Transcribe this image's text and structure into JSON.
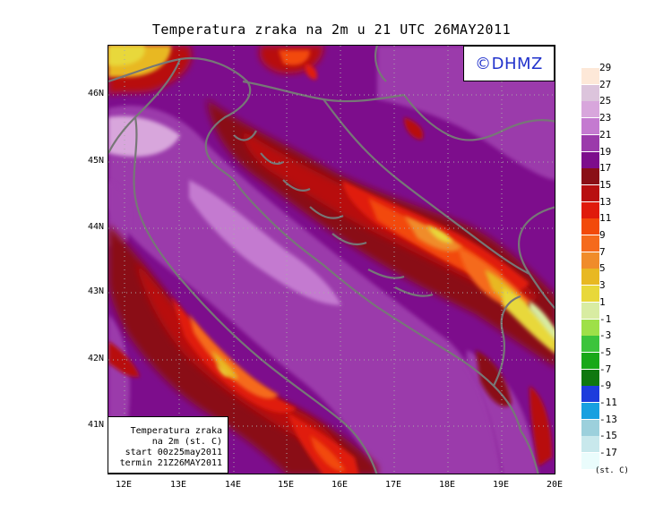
{
  "title": "Temperatura zraka na 2m u 21 UTC 26MAY2011",
  "logo": "©DHMZ",
  "info_box": {
    "line1": "Temperatura zraka",
    "line2": "na 2m (st. C)",
    "line3": "start 00z25may2011",
    "line4": "termin 21Z26MAY2011"
  },
  "axes": {
    "lat_labels": [
      "46N",
      "45N",
      "44N",
      "43N",
      "42N",
      "41N"
    ],
    "lon_labels": [
      "12E",
      "13E",
      "14E",
      "15E",
      "16E",
      "17E",
      "18E",
      "19E",
      "20E"
    ]
  },
  "legend": {
    "unit": "(st. C)",
    "labels": [
      "29",
      "27",
      "25",
      "23",
      "21",
      "19",
      "17",
      "15",
      "13",
      "11",
      "9",
      "7",
      "5",
      "3",
      "1",
      "-1",
      "-3",
      "-5",
      "-7",
      "-9",
      "-11",
      "-13",
      "-15",
      "-17"
    ],
    "colors": [
      "#fde8d8",
      "#dcc4dc",
      "#d8a6dc",
      "#c47ad0",
      "#9b3aab",
      "#7d0d8c",
      "#8a0f16",
      "#b80f10",
      "#e01a0c",
      "#f24a0a",
      "#f56a1c",
      "#f08c2a",
      "#e8b822",
      "#e8d83a",
      "#d8eca2",
      "#9ee048",
      "#3cc43c",
      "#18a818",
      "#0f780f",
      "#1e3cdc",
      "#18a0e0",
      "#9cd0dc",
      "#c8e8ec",
      "#eafcfc"
    ]
  }
}
